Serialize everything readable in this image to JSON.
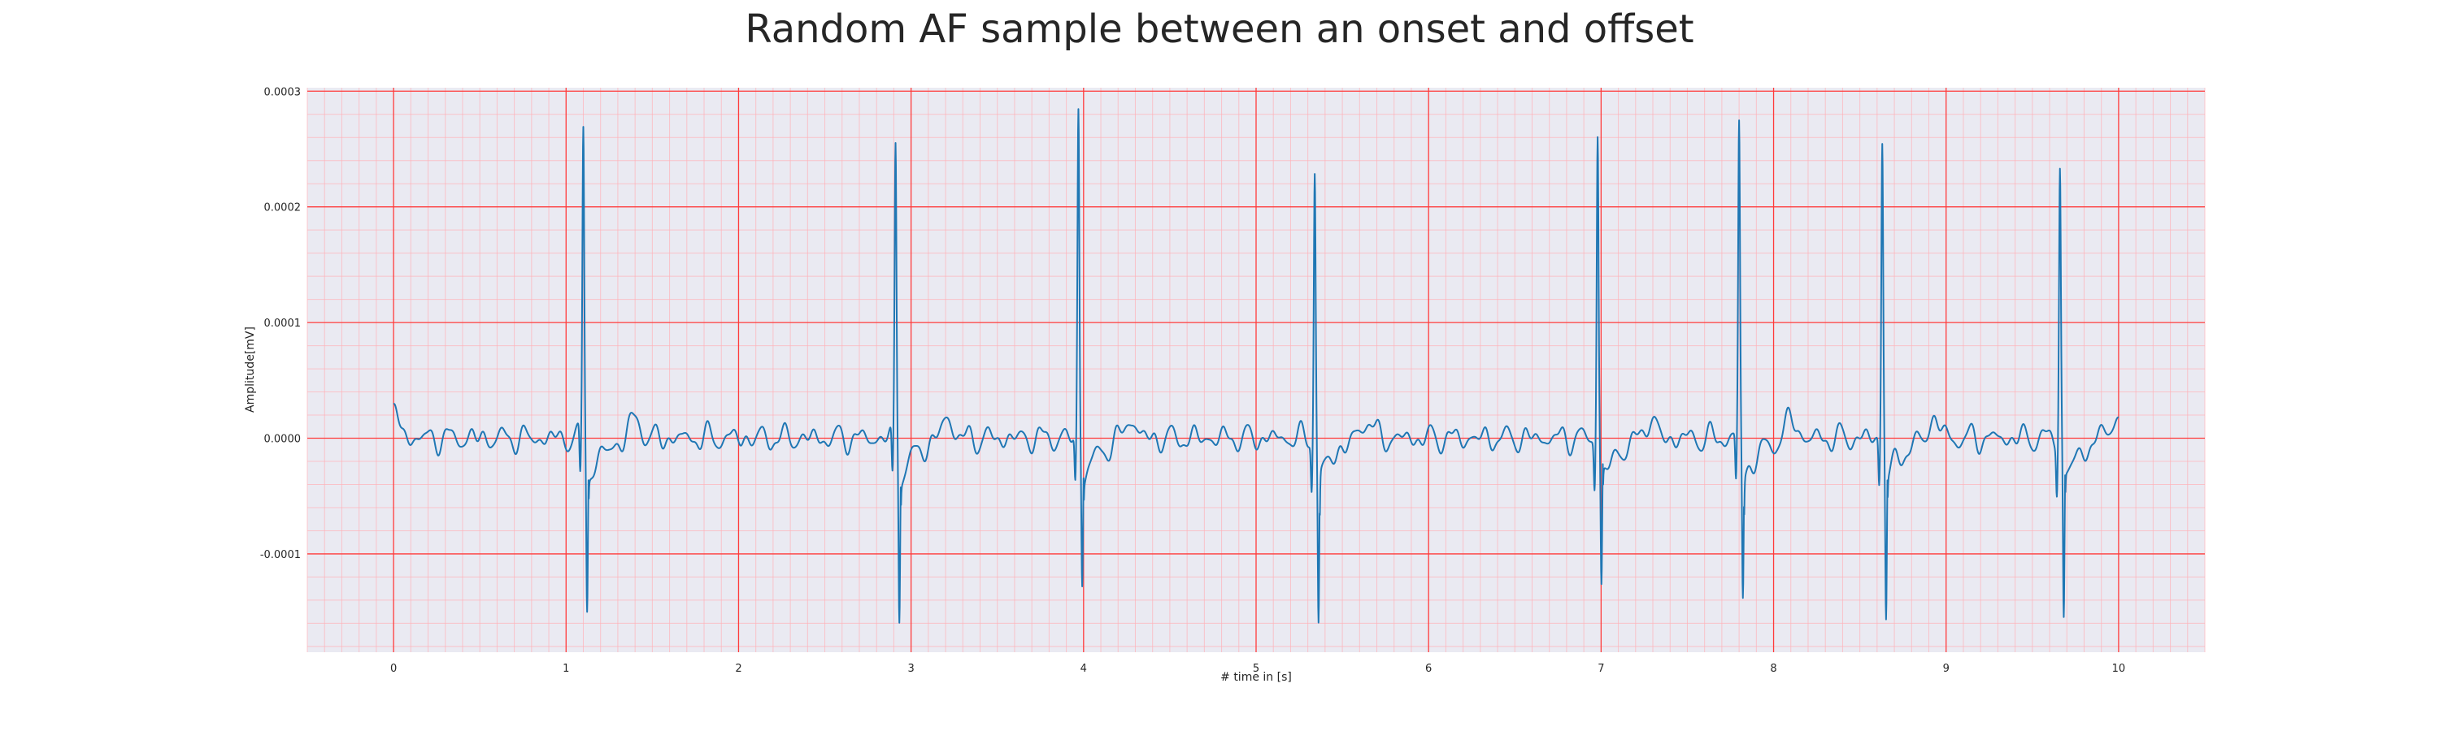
{
  "chart_data": {
    "type": "line",
    "title": "Random AF sample between an onset and offset",
    "xlabel": "# time in [s]",
    "ylabel": "Amplitude[mV]",
    "xlim": [
      -0.5,
      10.5
    ],
    "ylim": [
      -0.000185,
      0.000303
    ],
    "xticks": [
      0,
      1,
      2,
      3,
      4,
      5,
      6,
      7,
      8,
      9,
      10
    ],
    "xtick_labels": [
      "0",
      "1",
      "2",
      "3",
      "4",
      "5",
      "6",
      "7",
      "8",
      "9",
      "10"
    ],
    "yticks": [
      -0.0001,
      0.0,
      0.0001,
      0.0002,
      0.0003
    ],
    "ytick_labels": [
      "-0.0001",
      "0.0000",
      "0.0001",
      "0.0002",
      "0.0003"
    ],
    "grid": {
      "major": true,
      "minor": true,
      "color": "#ff0000"
    },
    "background": "#eaeaf2",
    "line_color": "#1f77b4",
    "x_range": [
      0,
      10
    ],
    "baseline_y": 2e-05,
    "beats": [
      {
        "t": 1.1,
        "r": 0.00027,
        "s": -0.000145
      },
      {
        "t": 2.91,
        "r": 0.000255,
        "s": -0.00015
      },
      {
        "t": 3.97,
        "r": 0.000283,
        "s": -0.00012
      },
      {
        "t": 5.34,
        "r": 0.000235,
        "s": -0.00016
      },
      {
        "t": 6.98,
        "r": 0.000267,
        "s": -0.00013
      },
      {
        "t": 7.8,
        "r": 0.000272,
        "s": -0.000137
      },
      {
        "t": 8.63,
        "r": 0.00026,
        "s": -0.000152
      },
      {
        "t": 9.66,
        "r": 0.000237,
        "s": -0.000158
      }
    ],
    "fibrillation_amplitude": 1.2e-05
  }
}
